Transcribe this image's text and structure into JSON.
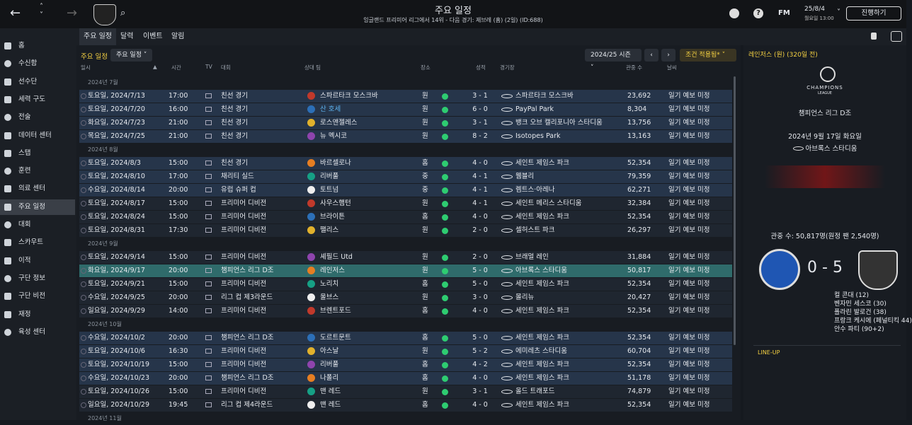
{
  "top_bar": {
    "title": "주요 일정",
    "subtitle": "잉글랜드 프리미어 리그에서 14위 - 다음 경기: 제브레 (홈) (2일) (ID:688)",
    "brand": "FM",
    "date": "25/8/4",
    "time": "월요일 13:00",
    "button": "진행하기"
  },
  "sidebar": [
    "홈",
    "수신함",
    "선수단",
    "세력 구도",
    "전술",
    "데이터 센터",
    "스탭",
    "훈련",
    "의료 센터",
    "주요 일정",
    "대회",
    "스카우트",
    "이적",
    "구단 정보",
    "구단 비전",
    "재정",
    "육성 센터"
  ],
  "tabs": [
    "주요 일정",
    "달력",
    "이벤트",
    "알림"
  ],
  "toolbar": {
    "label": "주요 일정",
    "view": "주요 일정",
    "season": "2024/25 시즌",
    "filter": "조건 적용됨*"
  },
  "table": {
    "columns": [
      "일시",
      "시간",
      "TV",
      "대회",
      "상대 팀",
      "장소",
      "성적",
      "경기장",
      "관중 수",
      "날씨"
    ],
    "groups": [
      {
        "month": "2024년 7월",
        "rows": [
          {
            "date": "토요일, 2024/7/13",
            "time": "17:00",
            "competition": "친선 경기",
            "opponent": "스파르타크 모스크바",
            "venue": "원",
            "result": "3 - 1",
            "stadium": "스파르타크 모스크바",
            "attendance": "23,692",
            "weather": "일기 예보 미정"
          },
          {
            "date": "토요일, 2024/7/20",
            "time": "16:00",
            "competition": "친선 경기",
            "opponent": "산 호세",
            "venue": "원",
            "result": "6 - 0",
            "stadium": "PayPal Park",
            "attendance": "8,304",
            "weather": "일기 예보 미정"
          },
          {
            "date": "화요일, 2024/7/23",
            "time": "21:00",
            "competition": "친선 경기",
            "opponent": "로스앤젤레스",
            "venue": "원",
            "result": "3 - 1",
            "stadium": "뱅크 오브 캘리포니아 스타디움",
            "attendance": "13,756",
            "weather": "일기 예보 미정"
          },
          {
            "date": "목요일, 2024/7/25",
            "time": "21:00",
            "competition": "친선 경기",
            "opponent": "뉴 멕시코",
            "venue": "원",
            "result": "8 - 2",
            "stadium": "Isotopes Park",
            "attendance": "13,163",
            "weather": "일기 예보 미정"
          }
        ]
      },
      {
        "month": "2024년 8월",
        "rows": [
          {
            "date": "토요일, 2024/8/3",
            "time": "15:00",
            "competition": "친선 경기",
            "opponent": "바르셀로나",
            "venue": "홈",
            "result": "4 - 0",
            "stadium": "세인트 제임스 파크",
            "attendance": "52,354",
            "weather": "일기 예보 미정"
          },
          {
            "date": "토요일, 2024/8/10",
            "time": "17:00",
            "competition": "채리티 실드",
            "opponent": "리버풀",
            "venue": "중",
            "result": "4 - 1",
            "stadium": "웸블리",
            "attendance": "79,359",
            "weather": "일기 예보 미정"
          },
          {
            "date": "수요일, 2024/8/14",
            "time": "20:00",
            "competition": "유럽 슈퍼 컵",
            "opponent": "토트넘",
            "venue": "중",
            "result": "4 - 1",
            "stadium": "렘트스·아레나",
            "attendance": "62,271",
            "weather": "일기 예보 미정"
          },
          {
            "date": "토요일, 2024/8/17",
            "time": "15:00",
            "competition": "프리미어 디비전",
            "opponent": "사우스햄턴",
            "venue": "원",
            "result": "4 - 1",
            "stadium": "세인트 메리스 스타디움",
            "attendance": "32,384",
            "weather": "일기 예보 미정"
          },
          {
            "date": "토요일, 2024/8/24",
            "time": "15:00",
            "competition": "프리미어 디비전",
            "opponent": "브라이튼",
            "venue": "홈",
            "result": "4 - 0",
            "stadium": "세인트 제임스 파크",
            "attendance": "52,354",
            "weather": "일기 예보 미정"
          },
          {
            "date": "토요일, 2024/8/31",
            "time": "17:30",
            "competition": "프리미어 디비전",
            "opponent": "팰리스",
            "venue": "원",
            "result": "2 - 0",
            "stadium": "셀허스트 파크",
            "attendance": "26,297",
            "weather": "일기 예보 미정"
          }
        ]
      },
      {
        "month": "2024년 9월",
        "rows": [
          {
            "date": "토요일, 2024/9/14",
            "time": "15:00",
            "competition": "프리미어 디비전",
            "opponent": "셰필드 Utd",
            "venue": "원",
            "result": "2 - 0",
            "stadium": "브래멀 레인",
            "attendance": "31,884",
            "weather": "일기 예보 미정"
          },
          {
            "date": "화요일, 2024/9/17",
            "time": "20:00",
            "competition": "챔피언스 리그 D조",
            "opponent": "레인저스",
            "venue": "원",
            "result": "5 - 0",
            "stadium": "아브록스 스타디움",
            "attendance": "50,817",
            "weather": "일기 예보 미정",
            "selected": true
          },
          {
            "date": "토요일, 2024/9/21",
            "time": "15:00",
            "competition": "프리미어 디비전",
            "opponent": "노리치",
            "venue": "홈",
            "result": "5 - 0",
            "stadium": "세인트 제임스 파크",
            "attendance": "52,354",
            "weather": "일기 예보 미정"
          },
          {
            "date": "수요일, 2024/9/25",
            "time": "20:00",
            "competition": "리그 컵 제3라운드",
            "opponent": "울브스",
            "venue": "원",
            "result": "3 - 0",
            "stadium": "몰리뉴",
            "attendance": "20,427",
            "weather": "일기 예보 미정"
          },
          {
            "date": "일요일, 2024/9/29",
            "time": "14:00",
            "competition": "프리미어 디비전",
            "opponent": "브렌트포드",
            "venue": "홈",
            "result": "4 - 0",
            "stadium": "세인트 제임스 파크",
            "attendance": "52,354",
            "weather": "일기 예보 미정"
          }
        ]
      },
      {
        "month": "2024년 10월",
        "rows": [
          {
            "date": "수요일, 2024/10/2",
            "time": "20:00",
            "competition": "챔피언스 리그 D조",
            "opponent": "도르트문트",
            "venue": "홈",
            "result": "5 - 0",
            "stadium": "세인트 제임스 파크",
            "attendance": "52,354",
            "weather": "일기 예보 미정"
          },
          {
            "date": "토요일, 2024/10/6",
            "time": "16:30",
            "competition": "프리미어 디비전",
            "opponent": "아스날",
            "venue": "원",
            "result": "5 - 2",
            "stadium": "에미레츠 스타디움",
            "attendance": "60,704",
            "weather": "일기 예보 미정"
          },
          {
            "date": "토요일, 2024/10/19",
            "time": "15:00",
            "competition": "프리미어 디비전",
            "opponent": "리버풀",
            "venue": "홈",
            "result": "4 - 2",
            "stadium": "세인트 제임스 파크",
            "attendance": "52,354",
            "weather": "일기 예보 미정"
          },
          {
            "date": "수요일, 2024/10/23",
            "time": "20:00",
            "competition": "챔피언스 리그 D조",
            "opponent": "나폴리",
            "venue": "홈",
            "result": "4 - 0",
            "stadium": "세인트 제임스 파크",
            "attendance": "51,178",
            "weather": "일기 예보 미정"
          },
          {
            "date": "토요일, 2024/10/26",
            "time": "15:00",
            "competition": "프리미어 디비전",
            "opponent": "맨 레드",
            "venue": "원",
            "result": "3 - 1",
            "stadium": "올드 트래포드",
            "attendance": "74,879",
            "weather": "일기 예보 미정"
          },
          {
            "date": "일요일, 2024/10/29",
            "time": "19:45",
            "competition": "리그 컵 제4라운드",
            "opponent": "맨 레드",
            "venue": "홈",
            "result": "4 - 0",
            "stadium": "세인트 제임스 파크",
            "attendance": "52,354",
            "weather": "일기 예보 미정"
          }
        ]
      },
      {
        "month": "2024년 11월",
        "rows": []
      }
    ]
  },
  "match_panel": {
    "heading": "레인저스 (원) (320일 전)",
    "logo_text": "CHAMPIONS",
    "logo_sub": "LEAGUE",
    "competition": "챔피언스 리그 D조",
    "date": "2024년 9월 17일 화요일",
    "stadium": "아브록스 스타디움",
    "attendance": "관중 수: 50,817명(원정 팬 2,540명)",
    "score": "0 - 5",
    "scorers": [
      "컬 콘대 (12)",
      "벤자민 세스코 (30)",
      "폴라린 발로건 (38)",
      "프랑크 케시에 (페널티킥 44)",
      "안수 파티 (90+2)"
    ],
    "lineup": "LINE-UP"
  }
}
